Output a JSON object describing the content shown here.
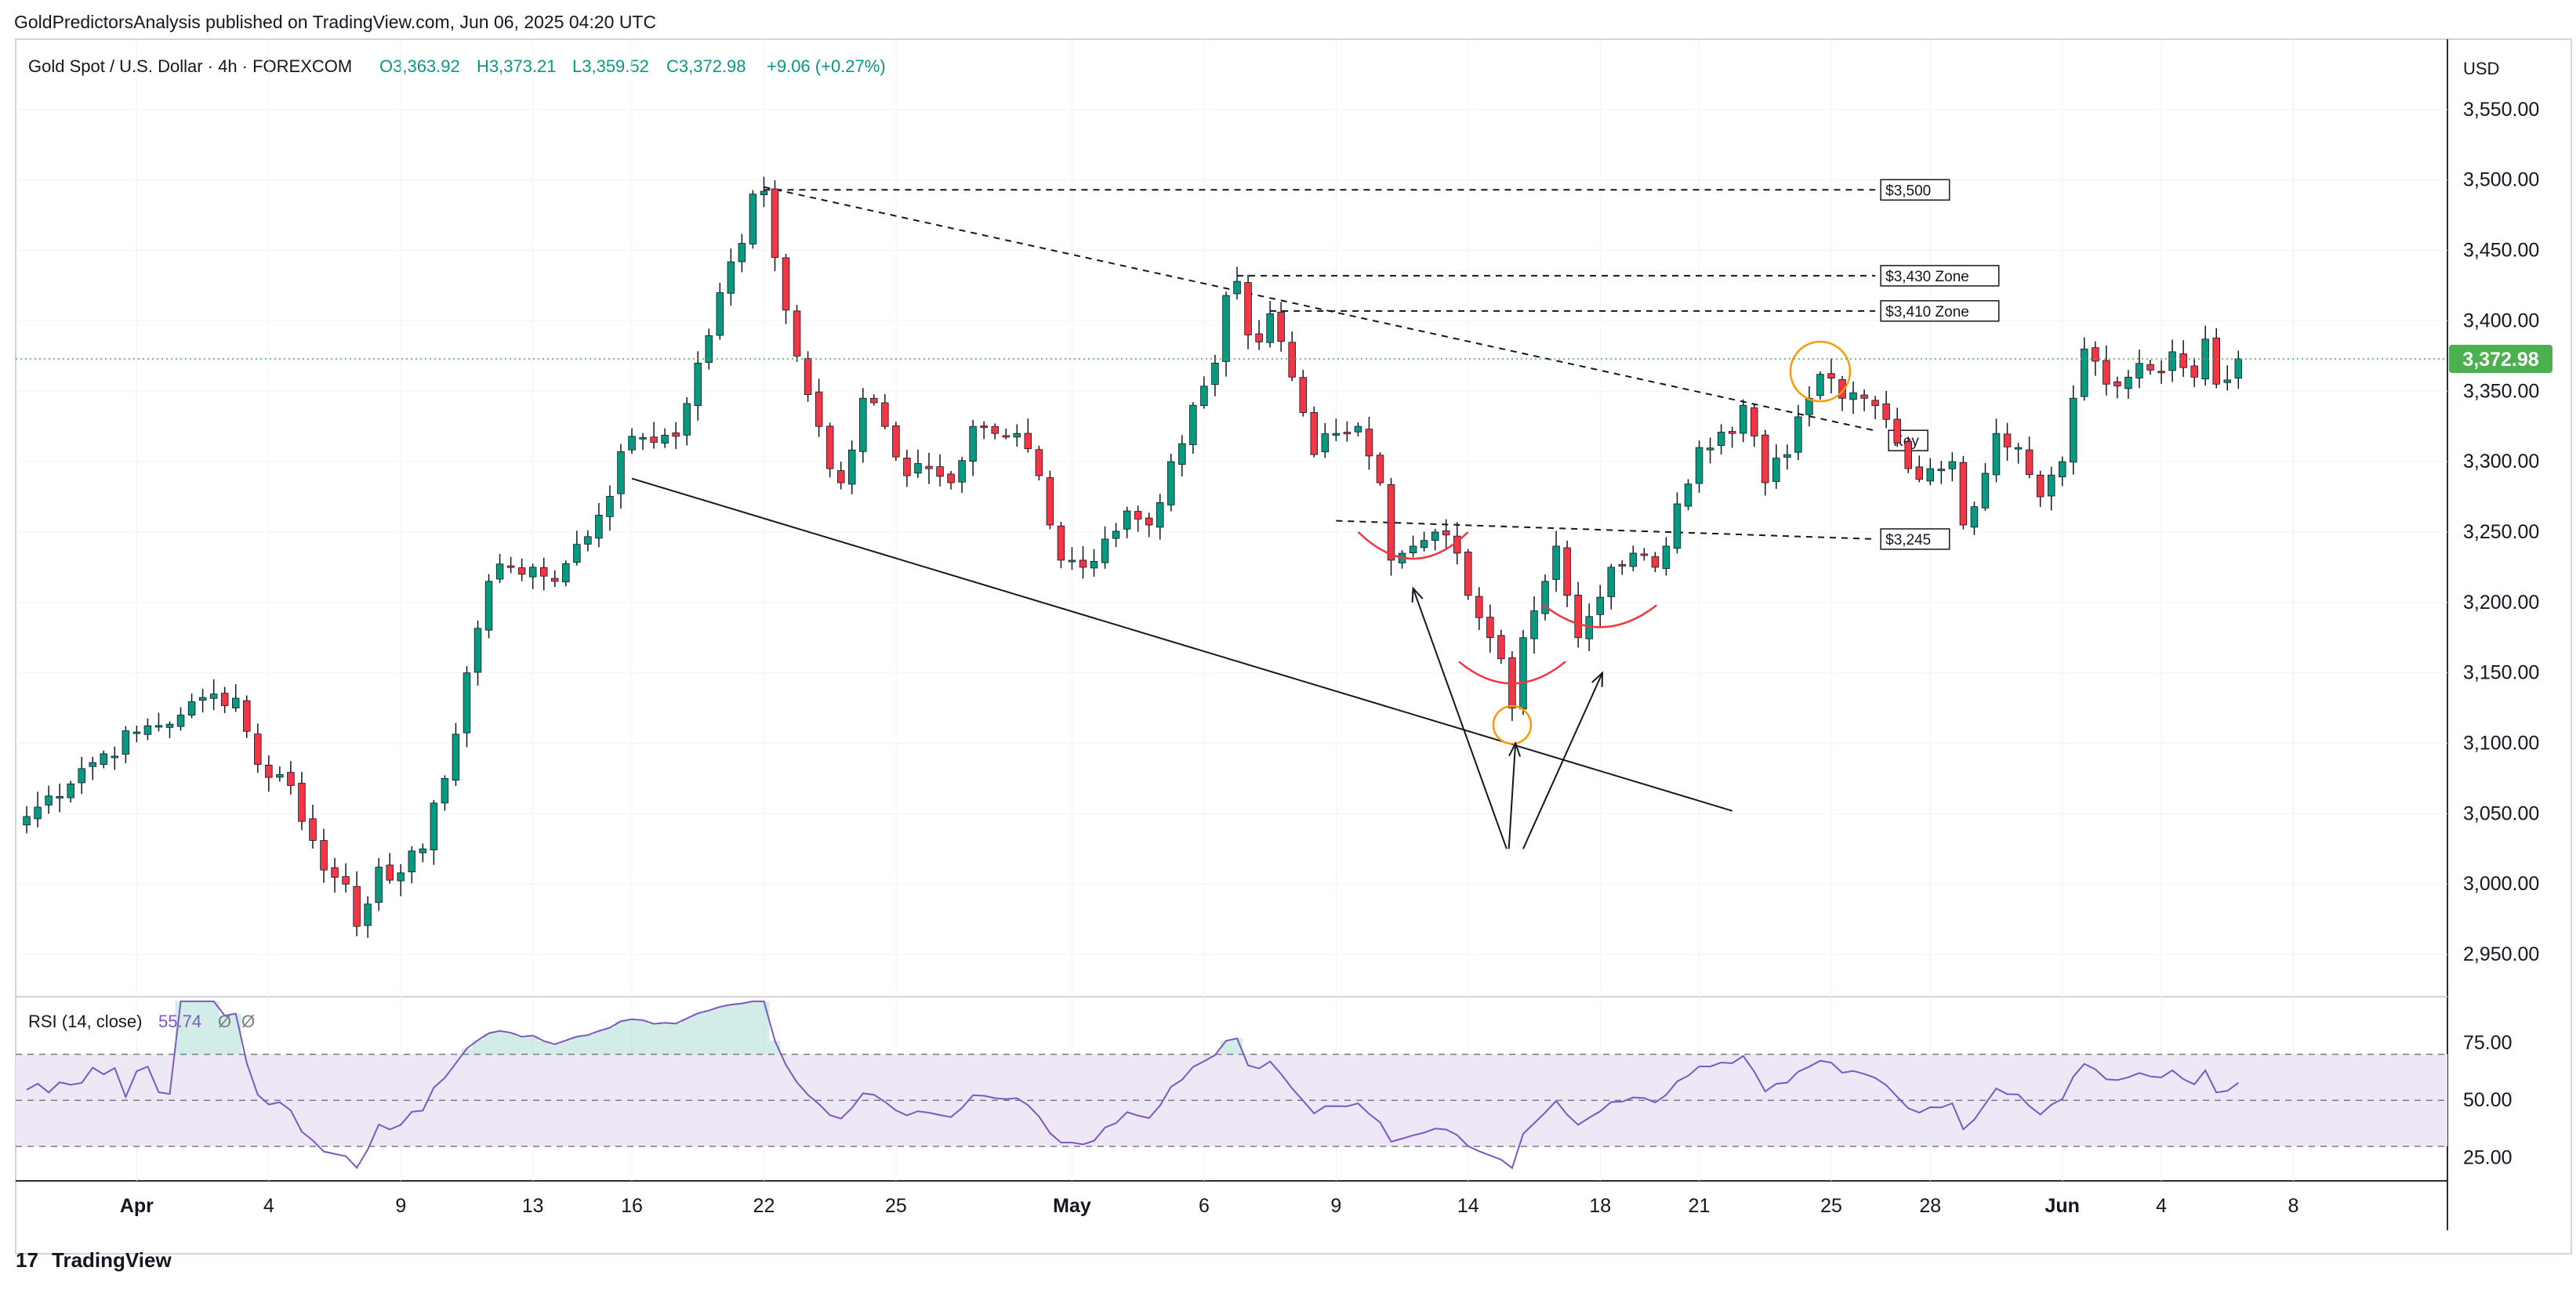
{
  "header": {
    "publisher_line": "GoldPredictorsAnalysis published on TradingView.com, Jun 06, 2025 04:20 UTC"
  },
  "legend": {
    "symbol": "Gold Spot / U.S. Dollar · 4h · FOREXCOM",
    "open": "O3,363.92",
    "high": "H3,373.21",
    "low": "L3,359.52",
    "close": "C3,372.98",
    "change": "+9.06 (+0.27%)"
  },
  "currency_label": "USD",
  "last_price_label": "3,372.98",
  "footer": {
    "brand": "TradingView"
  },
  "colors": {
    "up": "#089981",
    "down": "#f23645",
    "last_price": "#4caf50",
    "rsi_line": "#7e57c2",
    "rsi_band_fill": "#ede7f6",
    "orange_circle": "#ff9800"
  },
  "chart_data": [
    {
      "type": "candlestick",
      "timeframe": "4h",
      "ylim": [
        2920,
        3600
      ],
      "y_ticks": [
        "3,550.00",
        "3,500.00",
        "3,450.00",
        "3,400.00",
        "3,350.00",
        "3,300.00",
        "3,250.00",
        "3,200.00",
        "3,150.00",
        "3,100.00",
        "3,050.00",
        "3,000.00",
        "2,950.00"
      ],
      "y_tick_values": [
        3550,
        3500,
        3450,
        3400,
        3350,
        3300,
        3250,
        3200,
        3150,
        3100,
        3050,
        3000,
        2950
      ],
      "x_ticks": [
        {
          "label": "Apr",
          "i": 10
        },
        {
          "label": "4",
          "i": 22
        },
        {
          "label": "9",
          "i": 34
        },
        {
          "label": "13",
          "i": 46
        },
        {
          "label": "16",
          "i": 55
        },
        {
          "label": "22",
          "i": 67
        },
        {
          "label": "25",
          "i": 79
        },
        {
          "label": "May",
          "i": 95
        },
        {
          "label": "6",
          "i": 107
        },
        {
          "label": "9",
          "i": 119
        },
        {
          "label": "14",
          "i": 131
        },
        {
          "label": "18",
          "i": 143
        },
        {
          "label": "21",
          "i": 152
        },
        {
          "label": "25",
          "i": 164
        },
        {
          "label": "28",
          "i": 173
        },
        {
          "label": "Jun",
          "i": 185
        },
        {
          "label": "4",
          "i": 194
        },
        {
          "label": "8",
          "i": 206
        }
      ],
      "x_range": [
        -1,
        220
      ],
      "anchors": [
        [
          0,
          3048
        ],
        [
          5,
          3082
        ],
        [
          10,
          3108
        ],
        [
          14,
          3120
        ],
        [
          17,
          3135
        ],
        [
          19,
          3132
        ],
        [
          21,
          3085
        ],
        [
          24,
          3070
        ],
        [
          27,
          3010
        ],
        [
          29,
          3000
        ],
        [
          30,
          2970
        ],
        [
          32,
          3012
        ],
        [
          34,
          3008
        ],
        [
          36,
          3025
        ],
        [
          38,
          3075
        ],
        [
          40,
          3150
        ],
        [
          42,
          3215
        ],
        [
          44,
          3225
        ],
        [
          46,
          3225
        ],
        [
          48,
          3215
        ],
        [
          52,
          3262
        ],
        [
          55,
          3318
        ],
        [
          59,
          3318
        ],
        [
          61,
          3370
        ],
        [
          63,
          3420
        ],
        [
          65,
          3455
        ],
        [
          66,
          3490
        ],
        [
          67,
          3492
        ],
        [
          68,
          3445
        ],
        [
          70,
          3375
        ],
        [
          72,
          3325
        ],
        [
          73,
          3295
        ],
        [
          74,
          3285
        ],
        [
          76,
          3345
        ],
        [
          78,
          3325
        ],
        [
          80,
          3290
        ],
        [
          82,
          3295
        ],
        [
          84,
          3285
        ],
        [
          86,
          3325
        ],
        [
          88,
          3320
        ],
        [
          90,
          3320
        ],
        [
          92,
          3290
        ],
        [
          93,
          3255
        ],
        [
          94,
          3230
        ],
        [
          96,
          3225
        ],
        [
          98,
          3245
        ],
        [
          100,
          3265
        ],
        [
          102,
          3255
        ],
        [
          104,
          3300
        ],
        [
          106,
          3340
        ],
        [
          108,
          3370
        ],
        [
          109,
          3418
        ],
        [
          110,
          3428
        ],
        [
          111,
          3390
        ],
        [
          112,
          3385
        ],
        [
          113,
          3405
        ],
        [
          115,
          3360
        ],
        [
          117,
          3305
        ],
        [
          119,
          3320
        ],
        [
          121,
          3325
        ],
        [
          123,
          3285
        ],
        [
          124,
          3230
        ],
        [
          126,
          3240
        ],
        [
          128,
          3250
        ],
        [
          130,
          3235
        ],
        [
          131,
          3205
        ],
        [
          133,
          3175
        ],
        [
          134,
          3160
        ],
        [
          135,
          3125
        ],
        [
          136,
          3175
        ],
        [
          138,
          3215
        ],
        [
          139,
          3240
        ],
        [
          140,
          3205
        ],
        [
          141,
          3175
        ],
        [
          142,
          3190
        ],
        [
          144,
          3225
        ],
        [
          146,
          3235
        ],
        [
          148,
          3225
        ],
        [
          149,
          3240
        ],
        [
          150,
          3270
        ],
        [
          152,
          3310
        ],
        [
          155,
          3320
        ],
        [
          156,
          3340
        ],
        [
          158,
          3285
        ],
        [
          160,
          3305
        ],
        [
          162,
          3345
        ],
        [
          163,
          3362
        ],
        [
          165,
          3345
        ],
        [
          167,
          3345
        ],
        [
          169,
          3330
        ],
        [
          171,
          3295
        ],
        [
          173,
          3295
        ],
        [
          175,
          3300
        ],
        [
          176,
          3255
        ],
        [
          177,
          3268
        ],
        [
          179,
          3320
        ],
        [
          181,
          3310
        ],
        [
          183,
          3275
        ],
        [
          185,
          3300
        ],
        [
          186,
          3345
        ],
        [
          187,
          3380
        ],
        [
          189,
          3355
        ],
        [
          191,
          3360
        ],
        [
          193,
          3365
        ],
        [
          195,
          3378
        ],
        [
          197,
          3360
        ],
        [
          198,
          3387
        ],
        [
          199,
          3355
        ],
        [
          200,
          3358
        ],
        [
          201,
          3373
        ]
      ],
      "annotations": {
        "horizontal_lines": [
          {
            "label": "$3,500",
            "y1": 3493,
            "y2": 3493
          },
          {
            "label": "$3,430 Zone",
            "y1": 3432,
            "y2": 3432
          },
          {
            "label": "$3,410 Zone",
            "y1": 3407,
            "y2": 3407
          },
          {
            "label": "$3,245",
            "y1": 3258,
            "y2": 3245
          }
        ],
        "trendline_label": "Key",
        "zones": [
          {
            "label": "$3,500"
          },
          {
            "label": "$3,430 Zone"
          },
          {
            "label": "$3,410 Zone"
          },
          {
            "label": "$3,245"
          },
          {
            "label": "Key"
          }
        ]
      }
    },
    {
      "type": "line",
      "name": "RSI",
      "title": "RSI (14, close)",
      "current_value": "55.74",
      "extra_values": [
        "Ø",
        "Ø"
      ],
      "ylim": [
        15,
        95
      ],
      "y_ticks": [
        "75.00",
        "50.00",
        "25.00"
      ],
      "y_tick_values": [
        75,
        50,
        25
      ],
      "band": [
        30,
        70
      ],
      "midline": 50
    }
  ]
}
